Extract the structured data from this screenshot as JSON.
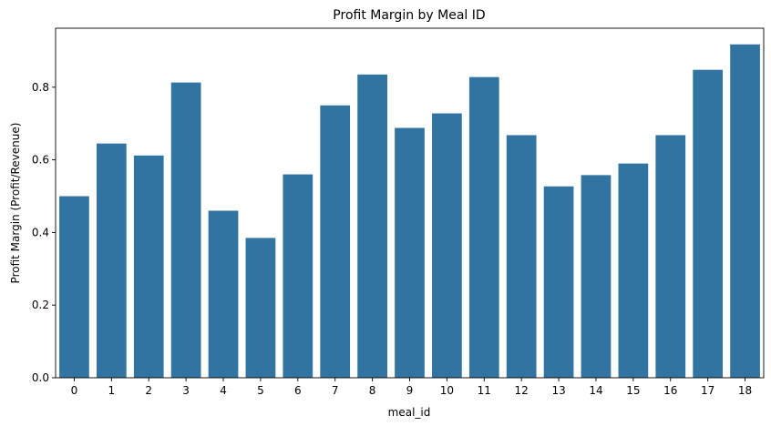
{
  "chart_data": {
    "type": "bar",
    "title": "Profit Margin by Meal ID",
    "xlabel": "meal_id",
    "ylabel": "Profit Margin (Profit/Revenue)",
    "categories": [
      "0",
      "1",
      "2",
      "3",
      "4",
      "5",
      "6",
      "7",
      "8",
      "9",
      "10",
      "11",
      "12",
      "13",
      "14",
      "15",
      "16",
      "17",
      "18"
    ],
    "values": [
      0.5,
      0.645,
      0.612,
      0.813,
      0.46,
      0.385,
      0.56,
      0.75,
      0.835,
      0.688,
      0.728,
      0.828,
      0.668,
      0.527,
      0.558,
      0.59,
      0.668,
      0.848,
      0.918
    ],
    "ylim": [
      0,
      0.9625
    ],
    "yticks": [
      0.0,
      0.2,
      0.4,
      0.6,
      0.8
    ],
    "ytick_labels": [
      "0.0",
      "0.2",
      "0.4",
      "0.6",
      "0.8"
    ],
    "bar_color": "#3274a1",
    "grid": false,
    "legend": "none"
  }
}
